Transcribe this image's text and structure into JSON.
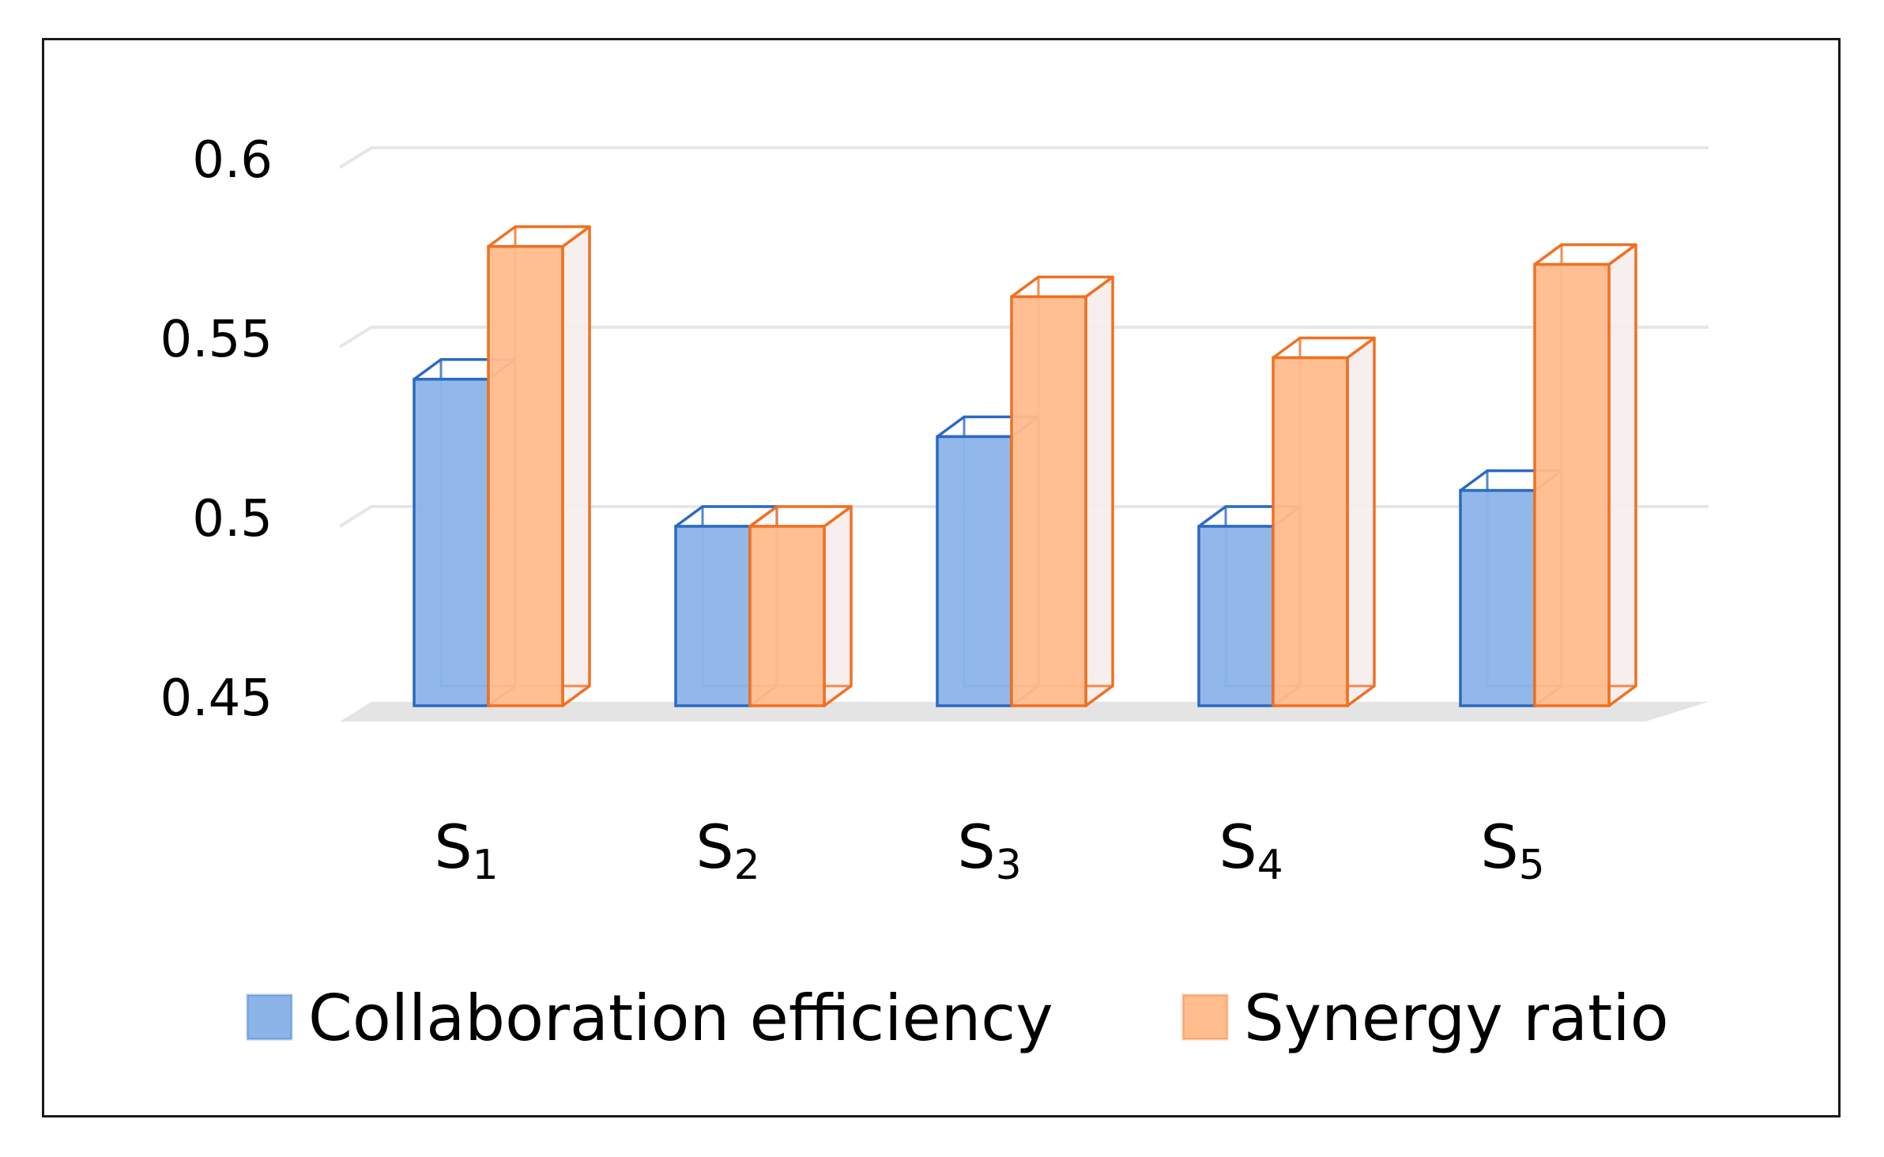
{
  "chart_data": {
    "type": "bar",
    "variant": "3d-clustered-column",
    "categories": [
      {
        "label": "S",
        "sub": "1"
      },
      {
        "label": "S",
        "sub": "2"
      },
      {
        "label": "S",
        "sub": "3"
      },
      {
        "label": "S",
        "sub": "4"
      },
      {
        "label": "S",
        "sub": "5"
      }
    ],
    "series": [
      {
        "name": "Collaboration efficiency",
        "values": [
          0.541,
          0.5,
          0.525,
          0.5,
          0.51
        ],
        "color": "#8cb4e8",
        "edge_color": "#2a6ac4"
      },
      {
        "name": "Synergy ratio",
        "values": [
          0.578,
          0.5,
          0.564,
          0.547,
          0.573
        ],
        "color": "#ffbc8c",
        "edge_color": "#f07020"
      }
    ],
    "y_ticks": [
      "0.6",
      "0.55",
      "0.5",
      "0.45"
    ],
    "y_tick_values": [
      0.6,
      0.55,
      0.5,
      0.45
    ],
    "ylim": [
      0.45,
      0.6
    ],
    "grid": true,
    "legend_position": "bottom",
    "title": "",
    "xlabel": "",
    "ylabel": ""
  },
  "colors": {
    "frame": "#1a1a1a",
    "grid": "#e6e6e6",
    "floor": "#e4e4e4",
    "side_tint": "#f6ecec"
  }
}
